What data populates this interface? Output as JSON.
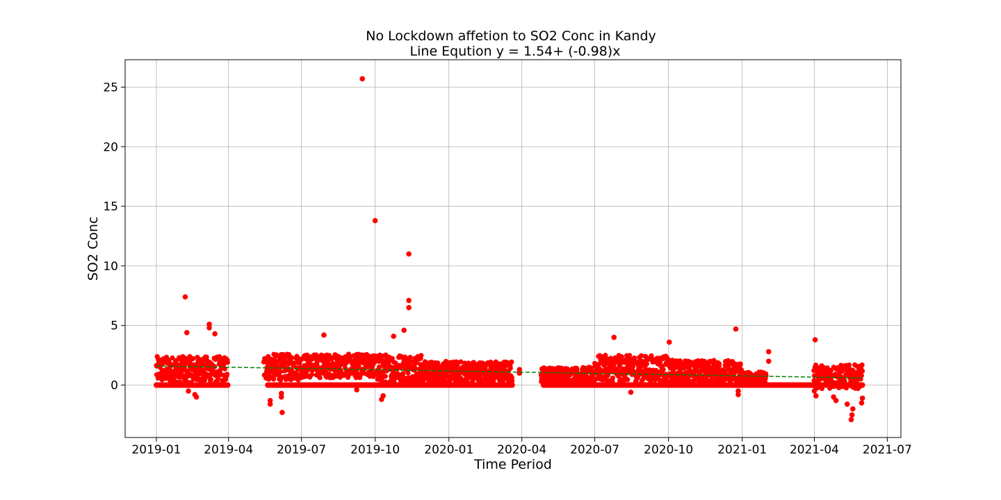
{
  "chart_data": {
    "type": "scatter",
    "title": "No Lockdown affetion to SO2 Conc in Kandy",
    "subtitle": "Line Eqution y = 1.54+ (-0.98)x",
    "xlabel": "Time Period",
    "ylabel": "SO2 Conc",
    "x_type": "date",
    "xlim": [
      "2018-11-23",
      "2021-07-18"
    ],
    "ylim": [
      -4.4,
      27.3
    ],
    "x_ticks": [
      "2019-01",
      "2019-04",
      "2019-07",
      "2019-10",
      "2020-01",
      "2020-04",
      "2020-07",
      "2020-10",
      "2021-01",
      "2021-04",
      "2021-07"
    ],
    "y_ticks": [
      0,
      5,
      10,
      15,
      20,
      25
    ],
    "grid": true,
    "colors": {
      "points": "#ff0000",
      "trend": "#008000",
      "grid": "#b0b0b0"
    },
    "series": [
      {
        "kind": "scatter",
        "bands": [
          {
            "start": "2019-01-01",
            "end": "2019-03-31",
            "base": 1.3,
            "spread": 1.1
          },
          {
            "start": "2019-05-15",
            "end": "2019-06-30",
            "base": 1.5,
            "spread": 1.1
          },
          {
            "start": "2019-07-01",
            "end": "2019-09-30",
            "base": 1.6,
            "spread": 1.0
          },
          {
            "start": "2019-10-01",
            "end": "2019-11-30",
            "base": 1.4,
            "spread": 1.2
          },
          {
            "start": "2019-12-01",
            "end": "2020-03-20",
            "base": 1.1,
            "spread": 0.9
          },
          {
            "start": "2020-04-25",
            "end": "2020-06-30",
            "base": 0.8,
            "spread": 0.7
          },
          {
            "start": "2020-07-01",
            "end": "2020-09-30",
            "base": 1.4,
            "spread": 1.1
          },
          {
            "start": "2020-10-01",
            "end": "2020-12-31",
            "base": 1.1,
            "spread": 1.0
          },
          {
            "start": "2021-01-01",
            "end": "2021-01-31",
            "base": 0.6,
            "spread": 0.5
          },
          {
            "start": "2021-03-31",
            "end": "2021-05-31",
            "base": 0.7,
            "spread": 1.0
          }
        ],
        "zero_runs": [
          {
            "start": "2019-01-01",
            "end": "2019-03-31"
          },
          {
            "start": "2019-05-20",
            "end": "2020-03-20"
          },
          {
            "start": "2020-04-28",
            "end": "2021-05-31"
          }
        ],
        "points": [
          {
            "x": "2019-09-15",
            "y": 25.7
          },
          {
            "x": "2019-10-01",
            "y": 13.8
          },
          {
            "x": "2019-11-12",
            "y": 11.0
          },
          {
            "x": "2019-11-12",
            "y": 7.1
          },
          {
            "x": "2019-11-12",
            "y": 6.5
          },
          {
            "x": "2019-02-06",
            "y": 7.4
          },
          {
            "x": "2019-02-08",
            "y": 4.4
          },
          {
            "x": "2019-03-08",
            "y": 5.1
          },
          {
            "x": "2019-03-08",
            "y": 4.8
          },
          {
            "x": "2019-03-15",
            "y": 4.3
          },
          {
            "x": "2019-07-29",
            "y": 4.2
          },
          {
            "x": "2019-10-24",
            "y": 4.1
          },
          {
            "x": "2019-11-06",
            "y": 4.6
          },
          {
            "x": "2020-12-24",
            "y": 4.7
          },
          {
            "x": "2020-07-25",
            "y": 4.0
          },
          {
            "x": "2020-10-02",
            "y": 3.6
          },
          {
            "x": "2021-04-02",
            "y": 3.8
          },
          {
            "x": "2021-02-03",
            "y": 2.8
          },
          {
            "x": "2021-02-03",
            "y": 2.0
          },
          {
            "x": "2020-03-29",
            "y": 1.3
          },
          {
            "x": "2020-03-29",
            "y": 1.0
          },
          {
            "x": "2019-06-07",
            "y": -2.3
          },
          {
            "x": "2019-06-06",
            "y": -1.0
          },
          {
            "x": "2019-06-06",
            "y": -0.7
          },
          {
            "x": "2019-05-23",
            "y": -1.6
          },
          {
            "x": "2019-05-23",
            "y": -1.3
          },
          {
            "x": "2019-02-20",
            "y": -1.0
          },
          {
            "x": "2019-02-18",
            "y": -0.8
          },
          {
            "x": "2019-02-10",
            "y": -0.5
          },
          {
            "x": "2019-10-09",
            "y": -1.2
          },
          {
            "x": "2019-10-11",
            "y": -0.9
          },
          {
            "x": "2019-09-08",
            "y": -0.4
          },
          {
            "x": "2020-12-27",
            "y": -0.8
          },
          {
            "x": "2020-12-27",
            "y": -0.5
          },
          {
            "x": "2020-08-15",
            "y": -0.6
          },
          {
            "x": "2021-05-17",
            "y": -2.9
          },
          {
            "x": "2021-05-18",
            "y": -2.5
          },
          {
            "x": "2021-05-19",
            "y": -2.0
          },
          {
            "x": "2021-05-12",
            "y": -1.6
          },
          {
            "x": "2021-05-30",
            "y": -1.5
          },
          {
            "x": "2021-05-31",
            "y": -1.1
          },
          {
            "x": "2021-04-28",
            "y": -1.3
          },
          {
            "x": "2021-04-25",
            "y": -1.0
          },
          {
            "x": "2021-04-03",
            "y": -0.9
          },
          {
            "x": "2021-04-01",
            "y": -0.5
          }
        ]
      },
      {
        "kind": "trend",
        "style": "dashed",
        "points": [
          {
            "x": "2019-01-01",
            "y": 1.6
          },
          {
            "x": "2021-05-31",
            "y": 0.6
          }
        ]
      }
    ]
  }
}
